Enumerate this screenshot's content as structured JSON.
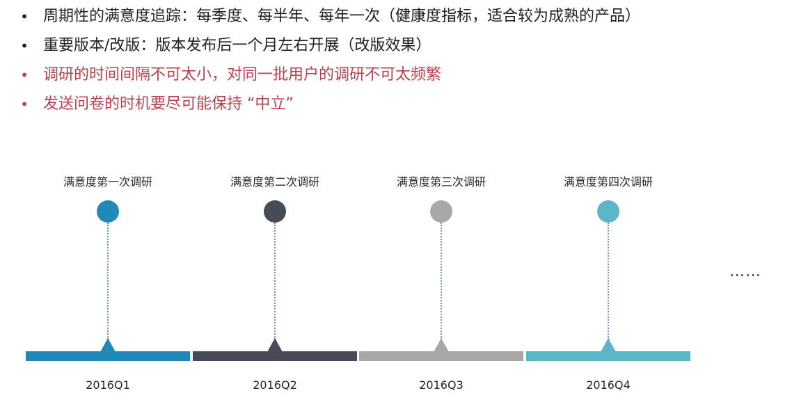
{
  "bullets": [
    {
      "marker": "•",
      "text": "周期性的满意度追踪：每季度、每半年、每年一次（健康度指标，适合较为成熟的产品）",
      "style": "dark"
    },
    {
      "marker": "•",
      "text": "重要版本/改版：版本发布后一个月左右开展（改版效果）",
      "style": "dark"
    },
    {
      "marker": "•",
      "text": "调研的时间间隔不可太小，对同一批用户的调研不可太频繁",
      "style": "accent"
    },
    {
      "marker": "•",
      "text": "发送问卷的时机要尽可能保持 “中立”",
      "style": "accent"
    }
  ],
  "timeline": {
    "stages": [
      {
        "label": "满意度第一次调研",
        "period": "2016Q1",
        "color": "#1f8ab8"
      },
      {
        "label": "满意度第二次调研",
        "period": "2016Q2",
        "color": "#474b58"
      },
      {
        "label": "满意度第三次调研",
        "period": "2016Q3",
        "color": "#a8a8a8"
      },
      {
        "label": "满意度第四次调研",
        "period": "2016Q4",
        "color": "#5cb6c8"
      }
    ],
    "continuation": "……"
  }
}
